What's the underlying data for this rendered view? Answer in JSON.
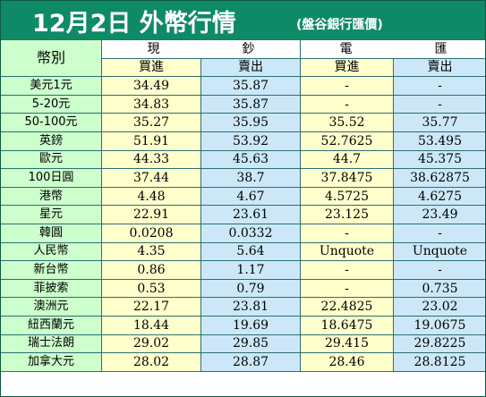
{
  "title": {
    "main": "12月2日 外幣行情",
    "source": "(盤谷銀行匯價)"
  },
  "header": {
    "currency_label": "幣別",
    "cash_left": "現",
    "cash_right": "鈔",
    "wire_left": "電",
    "wire_right": "匯",
    "cash_buy": "買進",
    "cash_sell": "賣出",
    "wire_buy": "買進",
    "wire_sell": "賣出"
  },
  "rows": [
    {
      "currency": "美元1元",
      "cash_buy": "34.49",
      "cash_sell": "35.87",
      "wire_buy": "-",
      "wire_sell": "-"
    },
    {
      "currency": "5-20元",
      "cash_buy": "34.83",
      "cash_sell": "35.87",
      "wire_buy": "-",
      "wire_sell": "-"
    },
    {
      "currency": "50-100元",
      "cash_buy": "35.27",
      "cash_sell": "35.95",
      "wire_buy": "35.52",
      "wire_sell": "35.77"
    },
    {
      "currency": "英鎊",
      "cash_buy": "51.91",
      "cash_sell": "53.92",
      "wire_buy": "52.7625",
      "wire_sell": "53.495"
    },
    {
      "currency": "歐元",
      "cash_buy": "44.33",
      "cash_sell": "45.63",
      "wire_buy": "44.7",
      "wire_sell": "45.375"
    },
    {
      "currency": "100日圓",
      "cash_buy": "37.44",
      "cash_sell": "38.7",
      "wire_buy": "37.8475",
      "wire_sell": "38.62875"
    },
    {
      "currency": "港幣",
      "cash_buy": "4.48",
      "cash_sell": "4.67",
      "wire_buy": "4.5725",
      "wire_sell": "4.6275"
    },
    {
      "currency": "星元",
      "cash_buy": "22.91",
      "cash_sell": "23.61",
      "wire_buy": "23.125",
      "wire_sell": "23.49"
    },
    {
      "currency": "韓圓",
      "cash_buy": "0.0208",
      "cash_sell": "0.0332",
      "wire_buy": "-",
      "wire_sell": "-"
    },
    {
      "currency": "人民幣",
      "cash_buy": "4.35",
      "cash_sell": "5.64",
      "wire_buy": "Unquote",
      "wire_sell": "Unquote"
    },
    {
      "currency": "新台幣",
      "cash_buy": "0.86",
      "cash_sell": "1.17",
      "wire_buy": "-",
      "wire_sell": "-"
    },
    {
      "currency": "菲披索",
      "cash_buy": "0.53",
      "cash_sell": "0.79",
      "wire_buy": "-",
      "wire_sell": "0.735"
    },
    {
      "currency": "澳洲元",
      "cash_buy": "22.17",
      "cash_sell": "23.81",
      "wire_buy": "22.4825",
      "wire_sell": "23.02"
    },
    {
      "currency": "紐西蘭元",
      "cash_buy": "18.44",
      "cash_sell": "19.69",
      "wire_buy": "18.6475",
      "wire_sell": "19.0675"
    },
    {
      "currency": "瑞士法朗",
      "cash_buy": "29.02",
      "cash_sell": "29.85",
      "wire_buy": "29.415",
      "wire_sell": "29.8225"
    },
    {
      "currency": "加拿大元",
      "cash_buy": "28.02",
      "cash_sell": "28.87",
      "wire_buy": "28.46",
      "wire_sell": "28.8125"
    }
  ]
}
